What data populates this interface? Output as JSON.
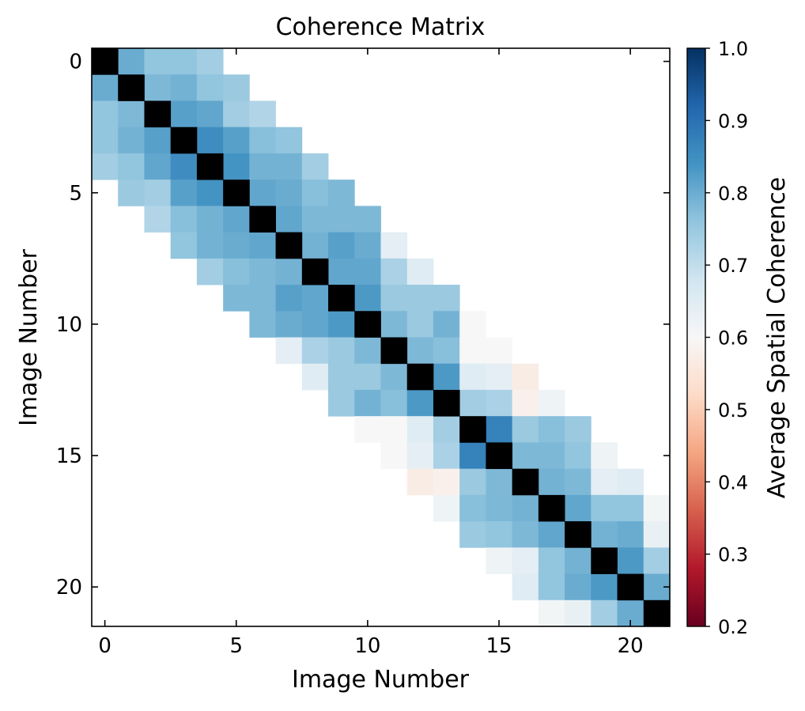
{
  "chart_data": {
    "type": "heatmap",
    "title": "Coherence Matrix",
    "xlabel": "Image Number",
    "ylabel": "Image Number",
    "n": 22,
    "x_ticks": [
      0,
      5,
      10,
      15,
      20
    ],
    "y_ticks": [
      0,
      5,
      10,
      15,
      20
    ],
    "diagonal": "black",
    "colorbar": {
      "label": "Average Spatial Coherence",
      "min": 0.2,
      "max": 1.0,
      "ticks": [
        0.2,
        0.3,
        0.4,
        0.5,
        0.6,
        0.7,
        0.8,
        0.9,
        1.0
      ],
      "tick_labels": [
        "0.2",
        "0.3",
        "0.4",
        "0.5",
        "0.6",
        "0.7",
        "0.8",
        "0.9",
        "1.0"
      ],
      "colormap": "RdBu"
    },
    "cells": [
      [
        0,
        1,
        0.8
      ],
      [
        0,
        2,
        0.76
      ],
      [
        0,
        3,
        0.76
      ],
      [
        0,
        4,
        0.74
      ],
      [
        1,
        2,
        0.78
      ],
      [
        1,
        3,
        0.79
      ],
      [
        1,
        4,
        0.76
      ],
      [
        1,
        5,
        0.75
      ],
      [
        2,
        3,
        0.82
      ],
      [
        2,
        4,
        0.81
      ],
      [
        2,
        5,
        0.74
      ],
      [
        2,
        6,
        0.72
      ],
      [
        3,
        4,
        0.85
      ],
      [
        3,
        5,
        0.82
      ],
      [
        3,
        6,
        0.77
      ],
      [
        3,
        7,
        0.76
      ],
      [
        4,
        5,
        0.84
      ],
      [
        4,
        6,
        0.79
      ],
      [
        4,
        7,
        0.79
      ],
      [
        4,
        8,
        0.74
      ],
      [
        5,
        6,
        0.81
      ],
      [
        5,
        7,
        0.8
      ],
      [
        5,
        8,
        0.77
      ],
      [
        5,
        9,
        0.78
      ],
      [
        6,
        7,
        0.81
      ],
      [
        6,
        8,
        0.78
      ],
      [
        6,
        9,
        0.78
      ],
      [
        6,
        10,
        0.78
      ],
      [
        7,
        8,
        0.79
      ],
      [
        7,
        9,
        0.82
      ],
      [
        7,
        10,
        0.8
      ],
      [
        7,
        11,
        0.64
      ],
      [
        8,
        9,
        0.81
      ],
      [
        8,
        10,
        0.81
      ],
      [
        8,
        11,
        0.73
      ],
      [
        8,
        12,
        0.65
      ],
      [
        9,
        10,
        0.83
      ],
      [
        9,
        11,
        0.75
      ],
      [
        9,
        12,
        0.75
      ],
      [
        9,
        13,
        0.75
      ],
      [
        10,
        11,
        0.78
      ],
      [
        10,
        12,
        0.75
      ],
      [
        10,
        13,
        0.79
      ],
      [
        10,
        14,
        0.6
      ],
      [
        11,
        12,
        0.78
      ],
      [
        11,
        13,
        0.77
      ],
      [
        11,
        14,
        0.6
      ],
      [
        11,
        15,
        0.6
      ],
      [
        12,
        13,
        0.83
      ],
      [
        12,
        14,
        0.65
      ],
      [
        12,
        15,
        0.64
      ],
      [
        12,
        16,
        0.57
      ],
      [
        13,
        14,
        0.74
      ],
      [
        13,
        15,
        0.73
      ],
      [
        13,
        16,
        0.58
      ],
      [
        13,
        17,
        0.62
      ],
      [
        14,
        15,
        0.87
      ],
      [
        14,
        16,
        0.75
      ],
      [
        14,
        17,
        0.77
      ],
      [
        14,
        18,
        0.75
      ],
      [
        15,
        16,
        0.78
      ],
      [
        15,
        17,
        0.78
      ],
      [
        15,
        18,
        0.76
      ],
      [
        15,
        19,
        0.62
      ],
      [
        16,
        17,
        0.79
      ],
      [
        16,
        18,
        0.78
      ],
      [
        16,
        19,
        0.64
      ],
      [
        16,
        20,
        0.65
      ],
      [
        17,
        18,
        0.81
      ],
      [
        17,
        19,
        0.76
      ],
      [
        17,
        20,
        0.76
      ],
      [
        17,
        21,
        0.61
      ],
      [
        18,
        19,
        0.79
      ],
      [
        18,
        20,
        0.8
      ],
      [
        18,
        21,
        0.63
      ],
      [
        19,
        20,
        0.83
      ],
      [
        19,
        21,
        0.74
      ],
      [
        20,
        21,
        0.8
      ]
    ]
  }
}
